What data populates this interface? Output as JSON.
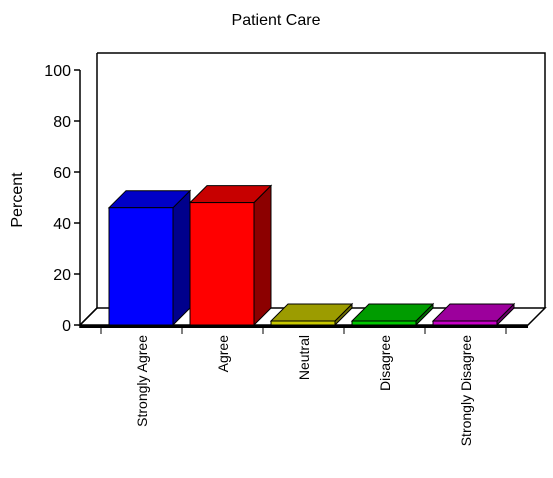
{
  "chart_data": {
    "type": "bar",
    "title": "Patient Care",
    "ylabel": "Percent",
    "xlabel": "",
    "ylim": [
      0,
      100
    ],
    "yticks": [
      0,
      20,
      40,
      60,
      80,
      100
    ],
    "categories": [
      "Strongly Agree",
      "Agree",
      "Neutral",
      "Disagree",
      "Strongly Disagree"
    ],
    "values": [
      46,
      48,
      1,
      0,
      0
    ],
    "colors": [
      "#0000ff",
      "#ff0000",
      "#c8c800",
      "#00c800",
      "#c800c8"
    ],
    "grid": false,
    "legend": "none",
    "style": "3d"
  }
}
